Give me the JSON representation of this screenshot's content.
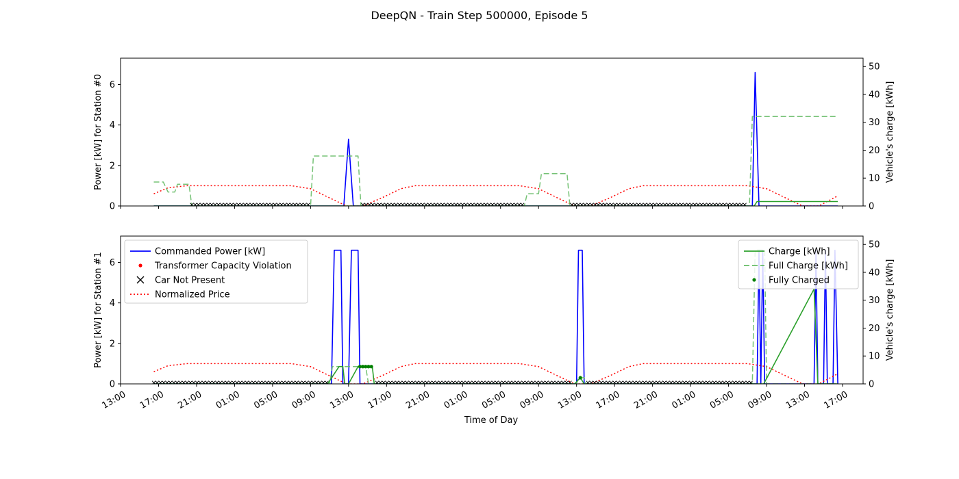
{
  "figure": {
    "title": "DeepQN - Train Step 500000, Episode 5"
  },
  "chart_data": {
    "type": "line",
    "title": "DeepQN - Train Step 500000, Episode 5",
    "xlabel": "Time of Day",
    "x_ticks": [
      "13:00",
      "17:00",
      "21:00",
      "01:00",
      "05:00",
      "09:00",
      "13:00",
      "17:00",
      "21:00",
      "01:00",
      "05:00",
      "09:00",
      "13:00",
      "17:00",
      "21:00",
      "01:00",
      "05:00",
      "09:00",
      "13:00",
      "17:00"
    ],
    "x_unit": "hours since first 13:00 tick",
    "xlim": [
      0,
      78.5
    ],
    "colors": {
      "commanded": "#0000ff",
      "violation": "#ff0000",
      "not_present": "#000000",
      "price": "#ff0000",
      "charge": "#2ca02c",
      "full_charge": "#66bb66",
      "fully_charged": "#008000"
    },
    "panels": [
      {
        "ylabel_left": "Power [kW] for Station #0",
        "ylabel_right": "Vehicle's charge [kWh]",
        "ylim_left": [
          0,
          7.3
        ],
        "ylim_right": [
          0,
          53
        ],
        "yticks_left": [
          "0",
          "2",
          "4",
          "6"
        ],
        "yticks_right": [
          "0",
          "10",
          "20",
          "30",
          "40",
          "50"
        ],
        "series": [
          {
            "name": "Commanded Power [kW]",
            "axis": "left",
            "style": "line",
            "points": [
              [
                3.5,
                0
              ],
              [
                23.5,
                0
              ],
              [
                24,
                3.3
              ],
              [
                24.5,
                0
              ],
              [
                66.5,
                0
              ],
              [
                66.8,
                6.6
              ],
              [
                67.2,
                0
              ],
              [
                75.5,
                0
              ]
            ]
          },
          {
            "name": "Normalized Price",
            "axis": "left",
            "style": "dotted",
            "points": [
              [
                3.5,
                0.6
              ],
              [
                5,
                0.9
              ],
              [
                7,
                1.0
              ],
              [
                18,
                1.0
              ],
              [
                20,
                0.85
              ],
              [
                22,
                0.4
              ],
              [
                23.8,
                0
              ],
              [
                25.5,
                0
              ],
              [
                27.5,
                0.4
              ],
              [
                29.5,
                0.85
              ],
              [
                31,
                1.0
              ],
              [
                42,
                1.0
              ],
              [
                44,
                0.85
              ],
              [
                46,
                0.4
              ],
              [
                47.8,
                0
              ],
              [
                49.5,
                0
              ],
              [
                51.5,
                0.4
              ],
              [
                53.5,
                0.85
              ],
              [
                55,
                1.0
              ],
              [
                66,
                1.0
              ],
              [
                68,
                0.85
              ],
              [
                70,
                0.4
              ],
              [
                71.8,
                0
              ],
              [
                73.5,
                0
              ],
              [
                75.5,
                0.5
              ]
            ]
          },
          {
            "name": "Full Charge [kWh]",
            "axis": "right",
            "style": "dashed",
            "points": [
              [
                3.5,
                8.6
              ],
              [
                4.5,
                8.6
              ],
              [
                5.0,
                5.0
              ],
              [
                5.7,
                5.0
              ],
              [
                6.0,
                7.8
              ],
              [
                7.2,
                7.8
              ],
              [
                7.5,
                0
              ],
              [
                20.0,
                0
              ],
              [
                20.3,
                17.9
              ],
              [
                25.0,
                17.9
              ],
              [
                25.3,
                0
              ],
              [
                42.5,
                0
              ],
              [
                42.8,
                4.4
              ],
              [
                44.0,
                4.4
              ],
              [
                44.3,
                11.6
              ],
              [
                47.0,
                11.6
              ],
              [
                47.3,
                0
              ],
              [
                66.2,
                0
              ],
              [
                66.5,
                32.1
              ],
              [
                75.5,
                32.1
              ]
            ]
          },
          {
            "name": "Charge [kWh]",
            "axis": "right",
            "style": "line",
            "points": [
              [
                3.5,
                0
              ],
              [
                66.7,
                0
              ],
              [
                67.0,
                1.6
              ],
              [
                75.5,
                1.6
              ]
            ]
          },
          {
            "name": "Car Not Present",
            "axis": "left",
            "style": "x-markers",
            "ranges": [
              [
                7.5,
                20.0
              ],
              [
                25.5,
                42.5
              ],
              [
                47.5,
                66.0
              ]
            ]
          }
        ]
      },
      {
        "ylabel_left": "Power [kW] for Station #1",
        "ylabel_right": "Vehicle's charge [kWh]",
        "ylim_left": [
          0,
          7.3
        ],
        "ylim_right": [
          0,
          53
        ],
        "yticks_left": [
          "0",
          "2",
          "4",
          "6"
        ],
        "yticks_right": [
          "0",
          "10",
          "20",
          "30",
          "40",
          "50"
        ],
        "series": [
          {
            "name": "Commanded Power [kW]",
            "axis": "left",
            "style": "line",
            "points": [
              [
                3.5,
                0
              ],
              [
                22.2,
                0
              ],
              [
                22.5,
                6.6
              ],
              [
                23.2,
                6.6
              ],
              [
                23.4,
                0
              ],
              [
                24.0,
                0
              ],
              [
                24.3,
                6.6
              ],
              [
                25.0,
                6.6
              ],
              [
                25.2,
                0
              ],
              [
                48.0,
                0
              ],
              [
                48.2,
                6.6
              ],
              [
                48.6,
                6.6
              ],
              [
                48.8,
                0
              ],
              [
                67.0,
                0
              ],
              [
                67.2,
                6.6
              ],
              [
                67.4,
                0
              ],
              [
                67.6,
                6.6
              ],
              [
                67.8,
                0
              ],
              [
                73.0,
                0
              ],
              [
                73.2,
                6.6
              ],
              [
                73.4,
                0
              ],
              [
                74.0,
                0
              ],
              [
                74.2,
                6.6
              ],
              [
                74.4,
                0
              ],
              [
                75.0,
                0
              ],
              [
                75.2,
                6.6
              ],
              [
                75.5,
                0
              ]
            ]
          },
          {
            "name": "Normalized Price",
            "axis": "left",
            "style": "dotted",
            "points": [
              [
                3.5,
                0.6
              ],
              [
                5,
                0.9
              ],
              [
                7,
                1.0
              ],
              [
                18,
                1.0
              ],
              [
                20,
                0.85
              ],
              [
                22,
                0.4
              ],
              [
                23.8,
                0
              ],
              [
                25.5,
                0
              ],
              [
                27.5,
                0.4
              ],
              [
                29.5,
                0.85
              ],
              [
                31,
                1.0
              ],
              [
                42,
                1.0
              ],
              [
                44,
                0.85
              ],
              [
                46,
                0.4
              ],
              [
                47.8,
                0
              ],
              [
                49.5,
                0
              ],
              [
                51.5,
                0.4
              ],
              [
                53.5,
                0.85
              ],
              [
                55,
                1.0
              ],
              [
                66,
                1.0
              ],
              [
                68,
                0.85
              ],
              [
                70,
                0.4
              ],
              [
                71.8,
                0
              ],
              [
                73.5,
                0
              ],
              [
                75.5,
                0.5
              ]
            ]
          },
          {
            "name": "Full Charge [kWh]",
            "axis": "right",
            "style": "dashed",
            "points": [
              [
                3.5,
                0
              ],
              [
                22.0,
                0
              ],
              [
                22.3,
                6.2
              ],
              [
                25.8,
                6.2
              ],
              [
                26.1,
                0
              ],
              [
                48.0,
                0
              ],
              [
                48.2,
                2.2
              ],
              [
                48.8,
                2.2
              ],
              [
                49.0,
                0
              ],
              [
                66.5,
                0
              ],
              [
                66.8,
                48.0
              ],
              [
                67.8,
                48.0
              ],
              [
                68.0,
                0
              ],
              [
                75.5,
                0
              ]
            ]
          },
          {
            "name": "Charge [kWh]",
            "axis": "right",
            "style": "line",
            "points": [
              [
                3.5,
                0
              ],
              [
                21.8,
                0
              ],
              [
                23.0,
                6.2
              ],
              [
                23.4,
                6.2
              ],
              [
                23.6,
                0
              ],
              [
                24.0,
                0
              ],
              [
                25.0,
                6.2
              ],
              [
                26.5,
                6.2
              ],
              [
                26.7,
                0
              ],
              [
                47.8,
                0
              ],
              [
                48.4,
                2.2
              ],
              [
                48.8,
                0
              ],
              [
                67.7,
                0
              ],
              [
                73.0,
                34.0
              ],
              [
                73.4,
                0
              ],
              [
                75.5,
                0
              ]
            ]
          },
          {
            "name": "Fully Charged",
            "axis": "right",
            "style": "dots",
            "points": [
              [
                25.2,
                6.2
              ],
              [
                25.5,
                6.2
              ],
              [
                25.8,
                6.2
              ],
              [
                26.1,
                6.2
              ],
              [
                26.4,
                6.2
              ],
              [
                48.4,
                2.2
              ]
            ]
          },
          {
            "name": "Car Not Present",
            "axis": "left",
            "style": "x-markers",
            "ranges": [
              [
                3.5,
                22.0
              ],
              [
                27.0,
                47.5
              ],
              [
                49.2,
                66.5
              ]
            ]
          }
        ]
      }
    ],
    "legend_left": {
      "placement": "upper-left",
      "entries": [
        {
          "label": "Commanded Power [kW]",
          "marker": "line",
          "color": "#0000ff"
        },
        {
          "label": "Transformer Capacity Violation",
          "marker": "dot",
          "color": "#ff0000"
        },
        {
          "label": "Car Not Present",
          "marker": "x",
          "color": "#000000"
        },
        {
          "label": "Normalized Price",
          "marker": "dotted",
          "color": "#ff0000"
        }
      ]
    },
    "legend_right": {
      "placement": "upper-right",
      "entries": [
        {
          "label": "Charge [kWh]",
          "marker": "line",
          "color": "#2ca02c"
        },
        {
          "label": "Full Charge [kWh]",
          "marker": "dashed",
          "color": "#66bb66"
        },
        {
          "label": "Fully Charged",
          "marker": "dot",
          "color": "#008000"
        }
      ]
    }
  }
}
